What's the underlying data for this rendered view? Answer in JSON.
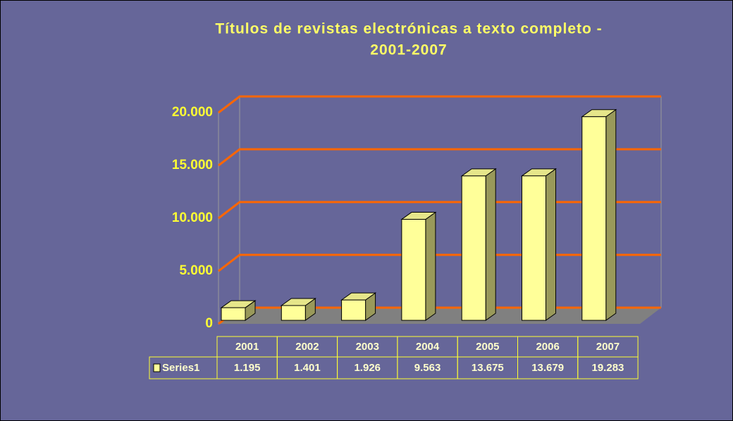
{
  "chart_data": {
    "type": "bar",
    "title": [
      "Títulos de revistas electrónicas a texto completo -",
      "2001-2007"
    ],
    "categories": [
      "2001",
      "2002",
      "2003",
      "2004",
      "2005",
      "2006",
      "2007"
    ],
    "series": [
      {
        "name": "Series1",
        "color": "#ffff99",
        "values": [
          1195,
          1401,
          1926,
          9563,
          13675,
          13679,
          19283
        ],
        "value_labels": [
          "1.195",
          "1.401",
          "1.926",
          "9.563",
          "13.675",
          "13.679",
          "19.283"
        ]
      }
    ],
    "ylim": [
      0,
      20000
    ],
    "yticks": [
      0,
      {
        "value": 5000,
        "label": "5.000"
      },
      {
        "value": 10000,
        "label": "10.000"
      },
      {
        "value": 15000,
        "label": "15.000"
      },
      {
        "value": 20000,
        "label": "20.000"
      }
    ],
    "grid": true
  }
}
